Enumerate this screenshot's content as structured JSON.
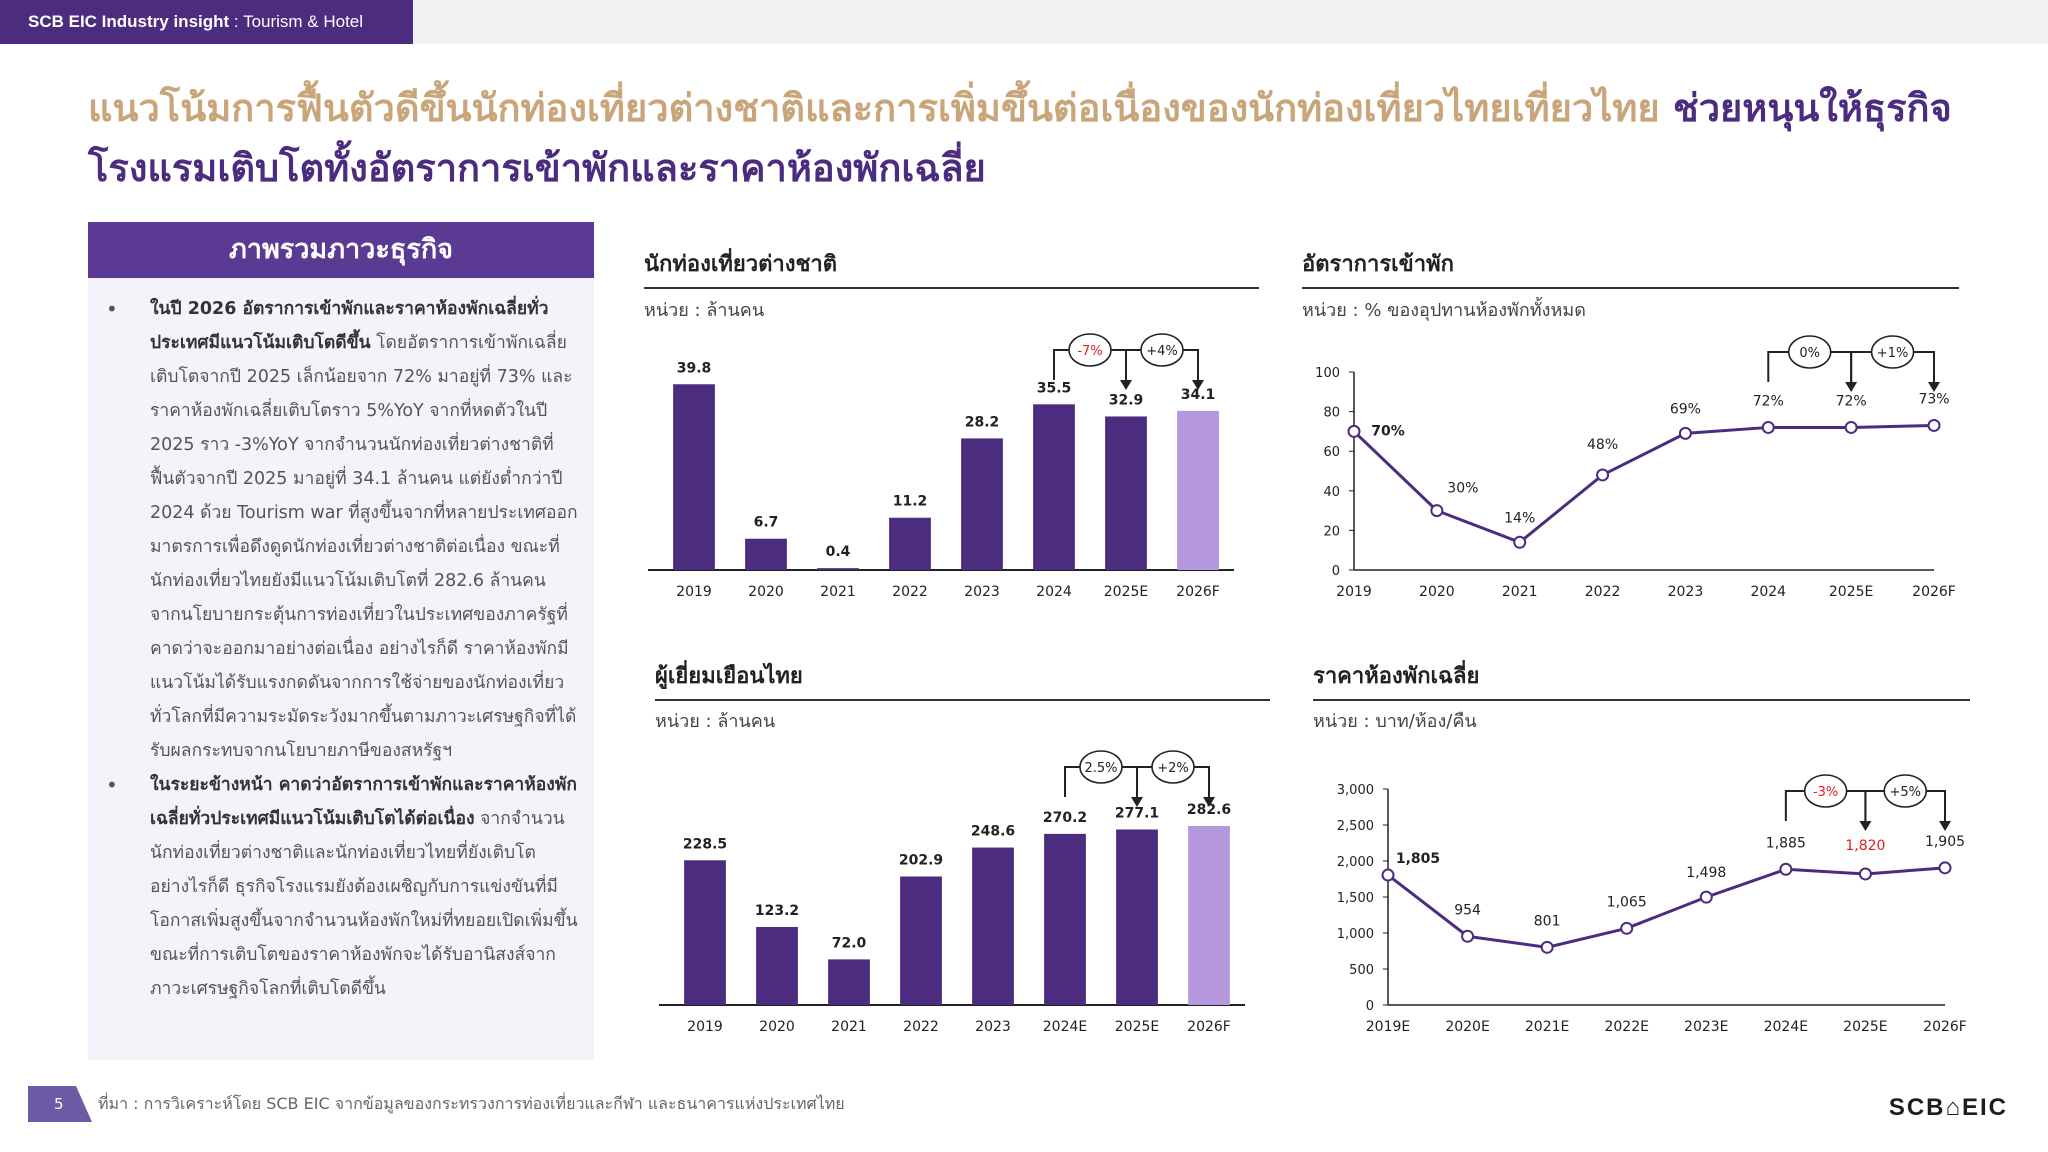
{
  "header": {
    "brand": "SCB EIC Industry insight",
    "sep": " : ",
    "topic": "Tourism & Hotel"
  },
  "title": {
    "part1": "แนวโน้มการฟื้นตัวดีขึ้นนักท่องเที่ยวต่างชาติและการเพิ่มขึ้นต่อเนื่องของนักท่องเที่ยวไทยเที่ยวไทย ",
    "part2": "ช่วยหนุนให้ธุรกิจโรงแรมเติบโตทั้งอัตราการเข้าพักและราคาห้องพักเฉลี่ย"
  },
  "overview": {
    "heading": "ภาพรวมภาวะธุรกิจ",
    "bullet1_bold": "ในปี 2026 อัตราการเข้าพักและราคาห้องพักเฉลี่ยทั่วประเทศมีแนวโน้มเติบโตดีขึ้น",
    "bullet1_text": " โดยอัตราการเข้าพักเฉลี่ยเติบโตจากปี 2025 เล็กน้อยจาก 72% มาอยู่ที่ 73% และราคาห้องพักเฉลี่ยเติบโตราว 5%YoY จากที่หดตัวในปี 2025 ราว -3%YoY จากจำนวนนักท่องเที่ยวต่างชาติที่ฟื้นตัวจากปี 2025 มาอยู่ที่ 34.1 ล้านคน แต่ยังต่ำกว่าปี 2024 ด้วย Tourism war ที่สูงขึ้นจากที่หลายประเทศออกมาตรการเพื่อดึงดูดนักท่องเที่ยวต่างชาติต่อเนื่อง ขณะที่นักท่องเที่ยวไทยยังมีแนวโน้มเติบโตที่ 282.6 ล้านคน จากนโยบายกระตุ้นการท่องเที่ยวในประเทศของภาครัฐที่คาดว่าจะออกมาอย่างต่อเนื่อง อย่างไรก็ดี ราคาห้องพักมีแนวโน้มได้รับแรงกดดันจากการใช้จ่ายของนักท่องเที่ยวทั่วโลกที่มีความระมัดระวังมากขึ้นตามภาวะเศรษฐกิจที่ได้รับผลกระทบจากนโยบายภาษีของสหรัฐฯ",
    "bullet2_bold": "ในระยะข้างหน้า คาดว่าอัตราการเข้าพักและราคาห้องพักเฉลี่ยทั่วประเทศมีแนวโน้มเติบโตได้ต่อเนื่อง",
    "bullet2_text": " จากจำนวนนักท่องเที่ยวต่างชาติและนักท่องเที่ยวไทยที่ยังเติบโต อย่างไรก็ดี ธุรกิจโรงแรมยังต้องเผชิญกับการแข่งขันที่มีโอกาสเพิ่มสูงขึ้นจากจำนวนห้องพักใหม่ที่ทยอยเปิดเพิ่มขึ้น ขณะที่การเติบโตของราคาห้องพักจะได้รับอานิสงส์จากภาวะเศรษฐกิจโลกที่เติบโตดีขึ้น"
  },
  "chart_data": [
    {
      "type": "bar",
      "title": "นักท่องเที่ยวต่างชาติ",
      "unit": "หน่วย : ล้านคน",
      "categories": [
        "2019",
        "2020",
        "2021",
        "2022",
        "2023",
        "2024",
        "2025E",
        "2026F"
      ],
      "values": [
        39.8,
        6.7,
        0.4,
        11.2,
        28.2,
        35.5,
        32.9,
        34.1
      ],
      "labels": [
        "39.8",
        "6.7",
        "0.4",
        "11.2",
        "28.2",
        "35.5",
        "32.9",
        "34.1"
      ],
      "highlight_index": 7,
      "ylim": [
        0,
        42
      ],
      "changes": [
        {
          "from": 5,
          "to": 6,
          "label": "-7%",
          "color": "#e02020"
        },
        {
          "from": 6,
          "to": 7,
          "label": "+4%",
          "color": "#222222"
        }
      ],
      "colors": {
        "bar": "#4b2c7f",
        "highlight": "#b497dc"
      }
    },
    {
      "type": "line",
      "title": "อัตราการเข้าพัก",
      "unit": "หน่วย : % ของอุปทานห้องพักทั้งหมด",
      "categories": [
        "2019",
        "2020",
        "2021",
        "2022",
        "2023",
        "2024",
        "2025E",
        "2026F"
      ],
      "values": [
        70,
        30,
        14,
        48,
        69,
        72,
        72,
        73
      ],
      "labels": [
        "70%",
        "30%",
        "14%",
        "48%",
        "69%",
        "72%",
        "72%",
        "73%"
      ],
      "yticks": [
        "0",
        "20",
        "40",
        "60",
        "80",
        "100"
      ],
      "ylim": [
        0,
        100
      ],
      "changes": [
        {
          "from": 5,
          "to": 6,
          "label": "0%",
          "color": "#222222"
        },
        {
          "from": 6,
          "to": 7,
          "label": "+1%",
          "color": "#222222"
        }
      ],
      "colors": {
        "line": "#4b2c7f"
      }
    },
    {
      "type": "bar",
      "title": "ผู้เยี่ยมเยือนไทย",
      "unit": "หน่วย : ล้านคน",
      "categories": [
        "2019",
        "2020",
        "2021",
        "2022",
        "2023",
        "2024E",
        "2025E",
        "2026F"
      ],
      "values": [
        228.5,
        123.2,
        72.0,
        202.9,
        248.6,
        270.2,
        277.1,
        282.6
      ],
      "labels": [
        "228.5",
        "123.2",
        "72.0",
        "202.9",
        "248.6",
        "270.2",
        "277.1",
        "282.6"
      ],
      "highlight_index": 7,
      "ylim": [
        0,
        300
      ],
      "changes": [
        {
          "from": 5,
          "to": 6,
          "label": "2.5%",
          "color": "#222222"
        },
        {
          "from": 6,
          "to": 7,
          "label": "+2%",
          "color": "#222222"
        }
      ],
      "colors": {
        "bar": "#4b2c7f",
        "highlight": "#b497dc"
      }
    },
    {
      "type": "line",
      "title": "ราคาห้องพักเฉลี่ย",
      "unit": "หน่วย : บาท/ห้อง/คืน",
      "categories": [
        "2019E",
        "2020E",
        "2021E",
        "2022E",
        "2023E",
        "2024E",
        "2025E",
        "2026F"
      ],
      "values": [
        1805,
        954,
        801,
        1065,
        1498,
        1885,
        1820,
        1905
      ],
      "labels": [
        "1,805",
        "954",
        "801",
        "1,065",
        "1,498",
        "1,885",
        "1,820",
        "1,905"
      ],
      "label_red_index": 6,
      "yticks": [
        "0",
        "500",
        "1,000",
        "1,500",
        "2,000",
        "2,500",
        "3,000"
      ],
      "ylim": [
        0,
        3000
      ],
      "changes": [
        {
          "from": 5,
          "to": 6,
          "label": "-3%",
          "color": "#e02020"
        },
        {
          "from": 6,
          "to": 7,
          "label": "+5%",
          "color": "#222222"
        }
      ],
      "colors": {
        "line": "#4b2c7f",
        "red": "#e02020"
      }
    }
  ],
  "footer": {
    "page": "5",
    "source": "ที่มา : การวิเคราะห์โดย SCB EIC จากข้อมูลของกระทรวงการท่องเที่ยวและกีฬา และธนาคารแห่งประเทศไทย",
    "logo": "SCB⌂EIC"
  }
}
